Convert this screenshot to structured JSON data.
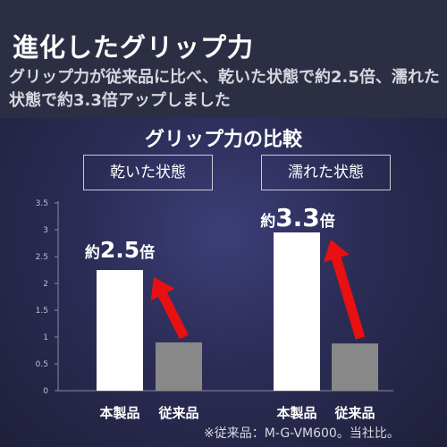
{
  "title": "進化したグリップ力",
  "subtitle": "グリップ力が従来品に比べ、乾いた状態で約2.5倍、濡れた状態で約3.3倍アップしました",
  "chart_title": "グリップ力の比較",
  "panels": [
    {
      "label": "乾いた状態",
      "callout_prefix": "約",
      "callout_value": "2.5",
      "callout_suffix": "倍"
    },
    {
      "label": "濡れた状態",
      "callout_prefix": "約",
      "callout_value": "3.3",
      "callout_suffix": "倍"
    }
  ],
  "footnote": "※従来品：M-G-VM600。当社比。",
  "chart_data": {
    "type": "bar",
    "title": "グリップ力の比較",
    "groups": [
      "乾いた状態",
      "濡れた状態"
    ],
    "categories": [
      "本製品",
      "従来品"
    ],
    "values": [
      [
        2.25,
        0.9
      ],
      [
        2.95,
        0.88
      ]
    ],
    "ylim": [
      0,
      3.5
    ],
    "yticks": [
      "0",
      "0.5",
      "1",
      "1.5",
      "2",
      "2.5",
      "3",
      "3.5"
    ],
    "ytick_values": [
      0,
      0.5,
      1,
      1.5,
      2,
      2.5,
      3,
      3.5
    ],
    "grid": false,
    "bar_colors": {
      "本製品": "#ffffff",
      "従来品": "#888888"
    },
    "arrow_color": "#e81010"
  }
}
